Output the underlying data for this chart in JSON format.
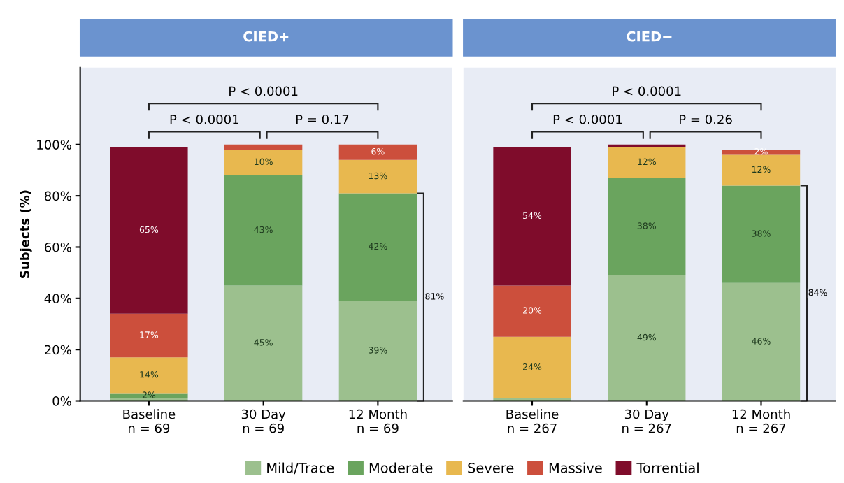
{
  "chart_data": [
    {
      "type": "bar",
      "title": "CIED+",
      "ylabel": "Subjects (%)",
      "stacked": true,
      "legend": "bottom",
      "tick_labels": "xy",
      "categories": [
        "Baseline\nn = 69",
        "30 Day\nn = 69",
        "12 Month\nn = 69"
      ],
      "ylim": [
        0,
        130
      ],
      "yticks": [
        {
          "value": 0,
          "label": "0%"
        },
        {
          "value": 20,
          "label": "20%"
        },
        {
          "value": 40,
          "label": "40%"
        },
        {
          "value": 60,
          "label": "60%"
        },
        {
          "value": 80,
          "label": "80%"
        },
        {
          "value": 100,
          "label": "100%"
        }
      ],
      "series": [
        {
          "name": "Mild/Trace",
          "color": "#9cc08e",
          "values": [
            1,
            45,
            39
          ],
          "value_labels": [
            null,
            "45%",
            "39%"
          ]
        },
        {
          "name": "Moderate",
          "color": "#6aa45e",
          "values": [
            2,
            43,
            42
          ],
          "value_labels": [
            "2%",
            "43%",
            "42%"
          ]
        },
        {
          "name": "Severe",
          "color": "#e8b84f",
          "values": [
            14,
            10,
            13
          ],
          "value_labels": [
            "14%",
            "10%",
            "13%"
          ]
        },
        {
          "name": "Massive",
          "color": "#cc4f3c",
          "values": [
            17,
            2,
            6
          ],
          "value_labels": [
            "17%",
            null,
            "6%"
          ]
        },
        {
          "name": "Torrential",
          "color": "#7f0c2b",
          "values": [
            65,
            null,
            null
          ],
          "value_labels": [
            "65%",
            null,
            null
          ]
        }
      ],
      "annotations": [
        "P < 0.0001",
        "P < 0.0001",
        "P = 0.17",
        "81%"
      ]
    },
    {
      "type": "bar",
      "title": "CIED−",
      "stacked": true,
      "tick_labels": "x",
      "categories": [
        "Baseline\nn = 267",
        "30 Day\nn = 267",
        "12 Month\nn = 267"
      ],
      "ylim": [
        0,
        130
      ],
      "series": [
        {
          "color": "#9cc08e",
          "values": [
            1,
            49,
            46
          ],
          "value_labels": [
            null,
            "49%",
            "46%"
          ]
        },
        {
          "color": "#6aa45e",
          "values": [
            null,
            38,
            38
          ],
          "value_labels": [
            null,
            "38%",
            "38%"
          ]
        },
        {
          "color": "#e8b84f",
          "values": [
            24,
            12,
            12
          ],
          "value_labels": [
            "24%",
            "12%",
            "12%"
          ]
        },
        {
          "color": "#cc4f3c",
          "values": [
            20,
            null,
            2
          ],
          "value_labels": [
            "20%",
            null,
            "2%"
          ]
        },
        {
          "color": "#7f0c2b",
          "values": [
            54,
            1,
            null
          ],
          "value_labels": [
            "54%",
            null,
            null
          ]
        }
      ],
      "annotations": [
        "P < 0.0001",
        "P < 0.0001",
        "P = 0.26",
        "84%"
      ]
    }
  ]
}
